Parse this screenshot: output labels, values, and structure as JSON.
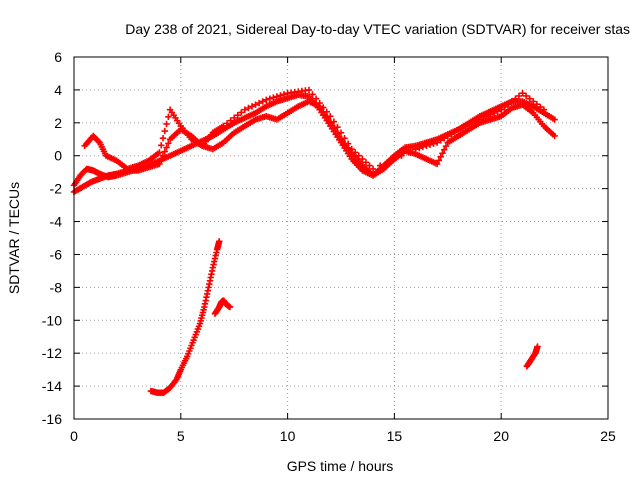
{
  "chart_data": {
    "type": "scatter",
    "title": "Day 238 of 2021, Sidereal Day-to-day VTEC variation (SDTVAR) for receiver stas",
    "xlabel": "GPS time / hours",
    "ylabel": "SDTVAR / TECUs",
    "xlim": [
      0,
      25
    ],
    "ylim": [
      -16,
      6
    ],
    "xticks": [
      "0",
      "5",
      "10",
      "15",
      "20",
      "25"
    ],
    "yticks": [
      "-16",
      "-14",
      "-12",
      "-10",
      "-8",
      "-6",
      "-4",
      "-2",
      "0",
      "2",
      "4",
      "6"
    ],
    "grid": true,
    "marker": "plus",
    "color": "#ff0000",
    "series": [
      {
        "name": "main-trace-a",
        "x": [
          0.0,
          0.3,
          0.6,
          0.9,
          1.2,
          1.6,
          2.0,
          2.5,
          3.0,
          3.5,
          4.0,
          4.5,
          5.0,
          5.5,
          6.0,
          6.5,
          7.0,
          7.5,
          8.0,
          8.5,
          9.0,
          9.5,
          10.0,
          10.5,
          11.0,
          11.5,
          12.0,
          12.5,
          13.0,
          13.5,
          14.0,
          14.5,
          15.0,
          15.5,
          16.0,
          16.5,
          17.0,
          17.5,
          18.0,
          18.5,
          19.0,
          19.5,
          20.0,
          20.5,
          21.0,
          21.5,
          22.0,
          22.5
        ],
        "y": [
          -1.8,
          -1.2,
          -0.8,
          -0.9,
          -1.1,
          -1.3,
          -1.2,
          -1.0,
          -0.8,
          -0.6,
          -0.3,
          0.0,
          0.3,
          0.6,
          0.9,
          1.2,
          1.6,
          2.0,
          2.3,
          2.6,
          3.0,
          3.3,
          3.5,
          3.7,
          3.6,
          2.8,
          1.8,
          0.8,
          -0.2,
          -0.9,
          -1.2,
          -0.6,
          0.0,
          0.5,
          0.6,
          0.8,
          1.0,
          1.3,
          1.6,
          2.0,
          2.4,
          2.7,
          3.0,
          3.3,
          3.3,
          3.0,
          2.6,
          2.2
        ]
      },
      {
        "name": "main-trace-b",
        "x": [
          0.0,
          0.4,
          0.8,
          1.2,
          1.6,
          2.0,
          2.5,
          3.0,
          3.5,
          4.0,
          4.5,
          5.0,
          5.5,
          6.0,
          6.5,
          7.0,
          7.5,
          8.0,
          8.5,
          9.0,
          9.5,
          10.0,
          10.5,
          11.0,
          11.5,
          12.0,
          12.5,
          13.0,
          13.5,
          14.0,
          14.5,
          15.0,
          15.5,
          16.0,
          16.5,
          17.0,
          17.5,
          18.0,
          18.5,
          19.0,
          19.5,
          20.0,
          20.5,
          21.0,
          21.5,
          22.0,
          22.5
        ],
        "y": [
          -2.2,
          -1.9,
          -1.6,
          -1.4,
          -1.2,
          -1.1,
          -0.9,
          -0.9,
          -0.7,
          -0.5,
          1.0,
          1.6,
          1.2,
          0.6,
          0.4,
          0.8,
          1.4,
          1.8,
          2.2,
          2.4,
          2.2,
          2.6,
          3.0,
          3.3,
          3.0,
          2.0,
          1.0,
          0.2,
          -0.6,
          -1.2,
          -0.8,
          -0.2,
          0.3,
          0.1,
          -0.2,
          -0.5,
          0.8,
          1.2,
          1.6,
          2.0,
          2.2,
          2.4,
          2.9,
          3.1,
          2.6,
          1.8,
          1.2
        ]
      },
      {
        "name": "main-trace-c",
        "x": [
          0.5,
          0.9,
          1.2,
          1.5,
          2.0,
          2.5,
          3.0,
          3.5,
          4.0,
          4.5,
          5.0,
          5.5,
          6.0,
          6.5,
          7.0,
          8.0,
          9.0,
          10.0,
          11.0,
          12.0,
          13.0,
          14.0,
          16.0,
          17.0,
          18.0,
          19.0,
          20.0,
          21.0,
          22.0
        ],
        "y": [
          0.6,
          1.2,
          0.8,
          0.0,
          -0.3,
          -0.8,
          -0.6,
          -0.3,
          0.2,
          2.8,
          1.8,
          1.0,
          0.6,
          1.4,
          1.8,
          2.8,
          3.4,
          3.8,
          4.0,
          2.4,
          0.4,
          -0.8,
          0.4,
          0.8,
          1.6,
          2.2,
          2.8,
          3.8,
          2.8
        ]
      },
      {
        "name": "low-rising-arc",
        "x": [
          3.6,
          3.9,
          4.2,
          4.5,
          4.8,
          5.0,
          5.3,
          5.6,
          5.9,
          6.1,
          6.3,
          6.5,
          6.7,
          6.8
        ],
        "y": [
          -14.3,
          -14.4,
          -14.4,
          -14.1,
          -13.6,
          -13.0,
          -12.2,
          -11.2,
          -10.2,
          -9.2,
          -8.0,
          -6.8,
          -5.7,
          -5.2
        ]
      },
      {
        "name": "low-cluster-7h",
        "x": [
          6.6,
          6.8,
          6.9,
          7.0,
          7.1,
          7.3
        ],
        "y": [
          -9.6,
          -9.2,
          -8.9,
          -8.8,
          -9.0,
          -9.2
        ]
      },
      {
        "name": "low-cluster-21h",
        "x": [
          21.2,
          21.4,
          21.6,
          21.7
        ],
        "y": [
          -12.8,
          -12.4,
          -12.0,
          -11.6
        ]
      }
    ]
  }
}
